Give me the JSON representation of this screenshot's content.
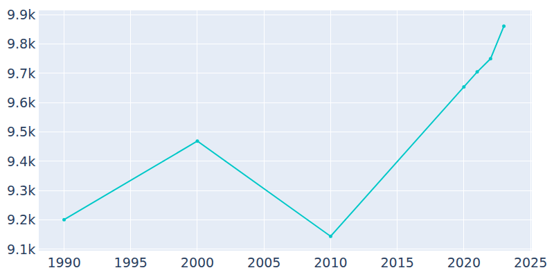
{
  "chart_data": {
    "type": "line",
    "x": [
      1990,
      2000,
      2010,
      2020,
      2021,
      2022,
      2023
    ],
    "values": [
      9201,
      9469,
      9144,
      9654,
      9705,
      9750,
      9861
    ],
    "color": "#00c8c8",
    "marker": "circle",
    "xlim": [
      1988.1,
      2025.1
    ],
    "xticks": [
      1990,
      1995,
      2000,
      2005,
      2010,
      2015,
      2020,
      2025
    ],
    "ylim": [
      9095,
      9915
    ],
    "yticks": [
      {
        "value": 9100,
        "label": "9.1k"
      },
      {
        "value": 9200,
        "label": "9.2k"
      },
      {
        "value": 9300,
        "label": "9.3k"
      },
      {
        "value": 9400,
        "label": "9.4k"
      },
      {
        "value": 9500,
        "label": "9.5k"
      },
      {
        "value": 9600,
        "label": "9.6k"
      },
      {
        "value": 9700,
        "label": "9.7k"
      },
      {
        "value": 9800,
        "label": "9.8k"
      },
      {
        "value": 9900,
        "label": "9.9k"
      }
    ],
    "grid": true
  }
}
